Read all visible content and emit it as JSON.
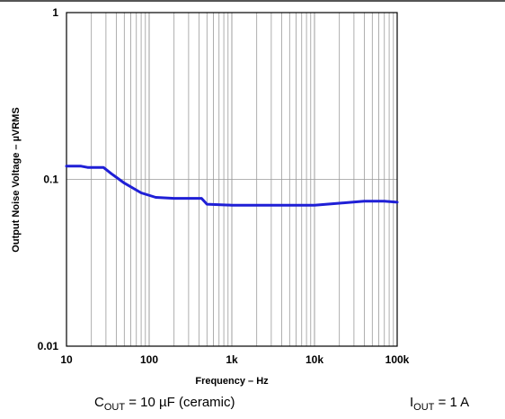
{
  "chart_data": {
    "type": "line",
    "title": "",
    "xlabel": "Frequency – Hz",
    "ylabel_main": "Output Noise Voltage – µV",
    "ylabel_sub": "RMS",
    "xscale": "log",
    "yscale": "log",
    "xlim": [
      10,
      100000
    ],
    "ylim": [
      0.01,
      1
    ],
    "x_tick_labels": [
      {
        "value": 10,
        "label": "10"
      },
      {
        "value": 100,
        "label": "100"
      },
      {
        "value": 1000,
        "label": "1k"
      },
      {
        "value": 10000,
        "label": "10k"
      },
      {
        "value": 100000,
        "label": "100k"
      }
    ],
    "y_tick_labels": [
      {
        "value": 1,
        "label": "1"
      },
      {
        "value": 0.1,
        "label": "0.1"
      },
      {
        "value": 0.01,
        "label": "0.01"
      }
    ],
    "grid": true,
    "series": [
      {
        "color": "#1f1fd6",
        "points": [
          [
            10,
            0.12
          ],
          [
            15,
            0.12
          ],
          [
            18,
            0.118
          ],
          [
            28,
            0.118
          ],
          [
            35,
            0.108
          ],
          [
            50,
            0.095
          ],
          [
            80,
            0.083
          ],
          [
            120,
            0.078
          ],
          [
            200,
            0.077
          ],
          [
            430,
            0.077
          ],
          [
            500,
            0.071
          ],
          [
            1000,
            0.07
          ],
          [
            5000,
            0.07
          ],
          [
            10000,
            0.07
          ],
          [
            20000,
            0.072
          ],
          [
            40000,
            0.074
          ],
          [
            70000,
            0.074
          ],
          [
            100000,
            0.073
          ]
        ]
      }
    ]
  },
  "captions": {
    "cout_main": "C",
    "cout_sub": "OUT",
    "cout_rest": " = 10 µF (ceramic)",
    "iout_main": "I",
    "iout_sub": "OUT",
    "iout_rest": " = 1 A"
  }
}
